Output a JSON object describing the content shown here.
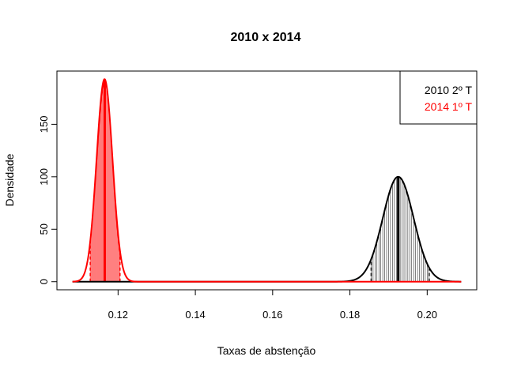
{
  "chart_data": {
    "type": "line",
    "title": "2010 x 2014",
    "xlabel": "Taxas de abstenção",
    "ylabel": "Densidade",
    "xlim": [
      0.108,
      0.209
    ],
    "ylim": [
      0,
      196
    ],
    "x_ticks": [
      0.12,
      0.14,
      0.16,
      0.18,
      0.2
    ],
    "x_tick_labels": [
      "0.12",
      "0.14",
      "0.16",
      "0.18",
      "0.20"
    ],
    "y_ticks": [
      0,
      50,
      100,
      150
    ],
    "y_tick_labels": [
      "0",
      "50",
      "100",
      "150"
    ],
    "grid": false,
    "legend_position": "top-right",
    "series": [
      {
        "name": "2010 2º T",
        "color": "#000000",
        "distribution": "normal",
        "mean": 0.1925,
        "sd": 0.00399,
        "peak_density": 100,
        "interval": [
          0.1855,
          0.2005
        ],
        "vline_start": 0.1855,
        "vline_end": 0.2005,
        "vline_step": 0.0005
      },
      {
        "name": "2014 1º T",
        "color": "#ff0000",
        "distribution": "normal",
        "mean": 0.1165,
        "sd": 0.00206,
        "peak_density": 193,
        "interval": [
          0.1128,
          0.1205
        ],
        "vline_start": 0.1128,
        "vline_end": 0.1205,
        "vline_step": 0.0002
      }
    ]
  }
}
